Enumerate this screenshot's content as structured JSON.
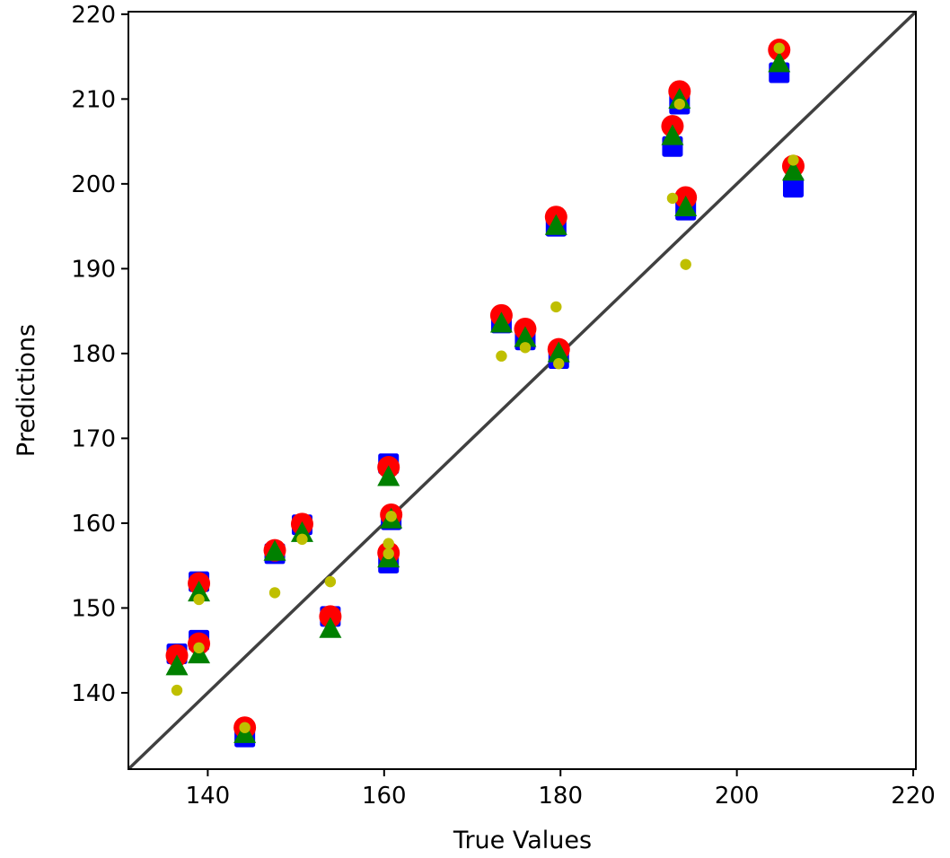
{
  "chart_data": {
    "type": "scatter",
    "title": "",
    "xlabel": "True Values",
    "ylabel": "Predictions",
    "xlim": [
      131,
      220.3
    ],
    "ylim": [
      131,
      220.3
    ],
    "xticks": [
      140,
      160,
      180,
      200,
      220
    ],
    "yticks": [
      140,
      150,
      160,
      170,
      180,
      190,
      200,
      210,
      220
    ],
    "grid": false,
    "legend": "none",
    "identity_line": {
      "from": [
        131,
        131
      ],
      "to": [
        220.3,
        220.3
      ],
      "color": "#404040"
    },
    "x": [
      136.5,
      139,
      139,
      144.2,
      147.6,
      150.7,
      153.9,
      160.5,
      160.5,
      160.8,
      173.3,
      176,
      179.5,
      179.8,
      192.7,
      193.5,
      194.2,
      204.8,
      206.4
    ],
    "series": [
      {
        "marker": "square",
        "color": "#0000ff",
        "values": [
          144.6,
          153.1,
          146.2,
          134.8,
          156.4,
          159.8,
          149.0,
          167.0,
          155.3,
          160.4,
          183.6,
          181.6,
          195.0,
          179.4,
          204.4,
          209.4,
          196.9,
          213.1,
          199.6
        ]
      },
      {
        "marker": "circle",
        "color": "#ff0000",
        "values": [
          144.4,
          152.9,
          145.8,
          135.9,
          156.8,
          159.9,
          149.0,
          166.6,
          156.5,
          161.0,
          184.5,
          182.9,
          196.1,
          180.5,
          206.8,
          210.9,
          198.4,
          215.8,
          202.1
        ]
      },
      {
        "marker": "triangle",
        "color": "#008000",
        "values": [
          143.2,
          151.9,
          144.6,
          135.2,
          156.7,
          158.9,
          147.6,
          165.5,
          155.9,
          160.5,
          183.6,
          181.9,
          195.1,
          180.1,
          205.7,
          210.0,
          197.3,
          214.3,
          201.5
        ]
      },
      {
        "marker": "small-circle",
        "color": "#bfbf00",
        "values": [
          140.3,
          151.0,
          145.3,
          135.9,
          151.8,
          158.1,
          153.1,
          157.6,
          156.4,
          160.8,
          179.7,
          180.7,
          185.5,
          178.8,
          198.3,
          209.4,
          190.5,
          216.0,
          202.8
        ]
      }
    ]
  }
}
